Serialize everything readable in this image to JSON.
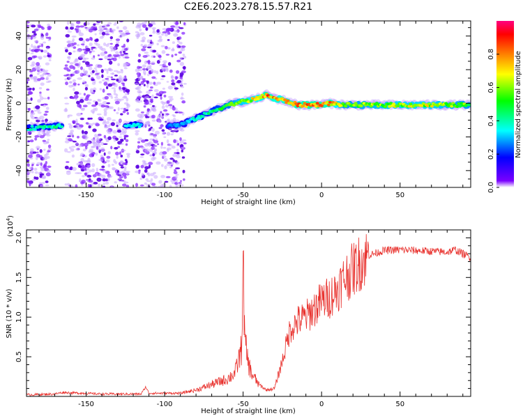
{
  "figure_title": "C2E6.2023.278.15.57.R21",
  "chart_data": [
    {
      "type": "heatmap",
      "xlabel": "Height of straight line (km)",
      "ylabel": "Frequency (Hz)",
      "xlim": [
        -188,
        95
      ],
      "ylim": [
        -50,
        49
      ],
      "x_ticks": [
        -150,
        -100,
        -50,
        0,
        50
      ],
      "x_tick_labels": [
        "-150",
        "-100",
        "-50",
        "0",
        "50"
      ],
      "y_ticks": [
        40,
        20,
        0,
        -20,
        -40
      ],
      "y_tick_labels": [
        "40",
        "20",
        "0",
        "-20",
        "-40"
      ],
      "colorbar": {
        "label": "Normalized spectral amplitude",
        "range": [
          0,
          1
        ],
        "ticks": [
          0.0,
          0.2,
          0.4,
          0.6,
          0.8
        ],
        "tick_labels": [
          "0.0",
          "0.2",
          "0.4",
          "0.6",
          "0.8"
        ],
        "colors": [
          "#ffffff",
          "#7a00ff",
          "#0000ff",
          "#00ffff",
          "#00ff00",
          "#ffff00",
          "#ff8000",
          "#ff0000",
          "#ff0080"
        ]
      },
      "ridge": {
        "x": [
          -188,
          -165,
          -140,
          -120,
          -105,
          -90,
          -80,
          -70,
          -60,
          -50,
          -40,
          -35,
          -30,
          -25,
          -15,
          -5,
          5,
          15,
          30,
          50,
          70,
          95
        ],
        "freq": [
          -15,
          -13,
          -13,
          -13,
          -13,
          -13,
          -9,
          -5,
          -1,
          1,
          3,
          5,
          3,
          2,
          -1,
          -1,
          0,
          -1,
          -1,
          -1,
          -1,
          -1
        ],
        "amplitude": [
          0.4,
          0.45,
          0.2,
          0.4,
          0.2,
          0.3,
          0.4,
          0.45,
          0.55,
          0.7,
          0.75,
          0.9,
          0.8,
          0.8,
          0.85,
          0.9,
          0.85,
          0.6,
          0.65,
          0.7,
          0.7,
          0.6
        ]
      }
    },
    {
      "type": "line",
      "xlabel": "Height of straight line (km)",
      "ylabel": "SNR (10 * v/v)",
      "y_multiplier": "(x10",
      "y_multiplier_exp": "4",
      "y_multiplier_close": ")",
      "xlim": [
        -188,
        95
      ],
      "ylim": [
        0,
        2.1
      ],
      "x_ticks": [
        -150,
        -100,
        -50,
        0,
        50
      ],
      "x_tick_labels": [
        "-150",
        "-100",
        "-50",
        "0",
        "50"
      ],
      "y_ticks": [
        0.5,
        1.0,
        1.5,
        2.0
      ],
      "y_tick_labels": [
        "0.5",
        "1.0",
        "1.5",
        "2.0"
      ],
      "color": "#e8302c",
      "x": [
        -188,
        -170,
        -165,
        -140,
        -115,
        -112,
        -110,
        -90,
        -80,
        -70,
        -60,
        -55,
        -51,
        -50,
        -49,
        -47,
        -45,
        -40,
        -35,
        -30,
        -25,
        -20,
        -15,
        -10,
        -5,
        0,
        5,
        10,
        15,
        20,
        25,
        30,
        40,
        50,
        60,
        70,
        80,
        85,
        90,
        95
      ],
      "y": [
        0.02,
        0.03,
        0.05,
        0.03,
        0.03,
        0.12,
        0.04,
        0.04,
        0.08,
        0.15,
        0.22,
        0.3,
        0.6,
        1.75,
        0.7,
        0.45,
        0.3,
        0.15,
        0.08,
        0.1,
        0.45,
        0.85,
        0.95,
        1.0,
        1.1,
        1.2,
        1.25,
        1.35,
        1.5,
        1.6,
        1.7,
        1.78,
        1.84,
        1.85,
        1.84,
        1.83,
        1.82,
        1.85,
        1.8,
        1.75
      ]
    }
  ]
}
